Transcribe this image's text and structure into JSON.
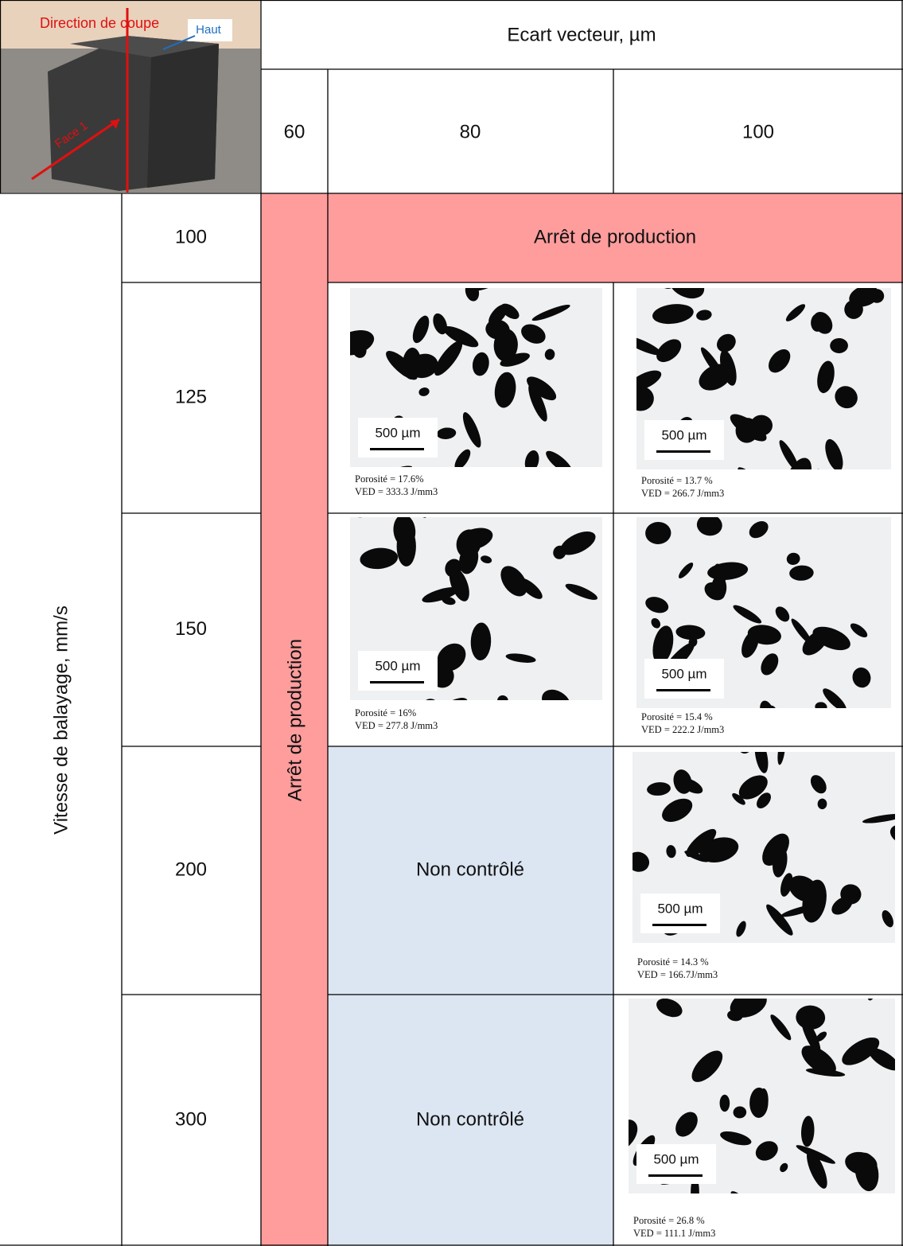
{
  "photo": {
    "cut_label": "Direction de coupe",
    "top_label": "Haut",
    "face_label": "Face 1"
  },
  "header": {
    "group": "Ecart vecteur, µm",
    "columns": [
      "60",
      "80",
      "100"
    ]
  },
  "row_header": "Vitesse de balayage, mm/s",
  "column_60_status": "Arrêt de production",
  "rows": [
    {
      "speed": "100",
      "status": "Arrêt de production"
    },
    {
      "speed": "125",
      "cells": [
        {
          "scale": "500 µm",
          "porosity": "Porosité = 17.6%",
          "ved": "VED = 333.3 J/mm3"
        },
        {
          "scale": "500 µm",
          "porosity": "Porosité = 13.7 %",
          "ved": "VED = 266.7 J/mm3"
        }
      ]
    },
    {
      "speed": "150",
      "cells": [
        {
          "scale": "500 µm",
          "porosity": "Porosité = 16%",
          "ved": "VED = 277.8 J/mm3"
        },
        {
          "scale": "500 µm",
          "porosity": "Porosité = 15.4 %",
          "ved": "VED = 222.2 J/mm3"
        }
      ]
    },
    {
      "speed": "200",
      "cells": [
        {
          "status": "Non contrôlé"
        },
        {
          "scale": "500 µm",
          "porosity": "Porosité = 14.3 %",
          "ved": "VED = 166.7J/mm3"
        }
      ]
    },
    {
      "speed": "300",
      "cells": [
        {
          "status": "Non contrôlé"
        },
        {
          "scale": "500 µm",
          "porosity": "Porosité = 26.8 %",
          "ved": "VED = 111.1 J/mm3"
        }
      ]
    }
  ]
}
